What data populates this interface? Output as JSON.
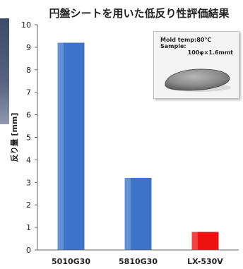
{
  "chart_data": {
    "type": "bar",
    "title": "円盤シートを用いた低反り性評価結果",
    "xlabel": "",
    "ylabel": "反り量 [mm]",
    "ylim": [
      0,
      10
    ],
    "yticks": [
      0,
      1,
      2,
      3,
      4,
      5,
      6,
      7,
      8,
      9,
      10
    ],
    "categories": [
      "5010G30",
      "5810G30",
      "LX-530V"
    ],
    "values": [
      9.2,
      3.2,
      0.8
    ],
    "bar_colors": [
      "#3d73c9",
      "#3d73c9",
      "#ee1111"
    ],
    "grid": false,
    "annotation": {
      "lines": [
        "Mold temp:80℃",
        "Sample:",
        "100φ×1.6mmt"
      ]
    }
  },
  "colors": {
    "blue_bar": "#3d73c9",
    "red_bar": "#ee1111",
    "axis": "#666666"
  }
}
